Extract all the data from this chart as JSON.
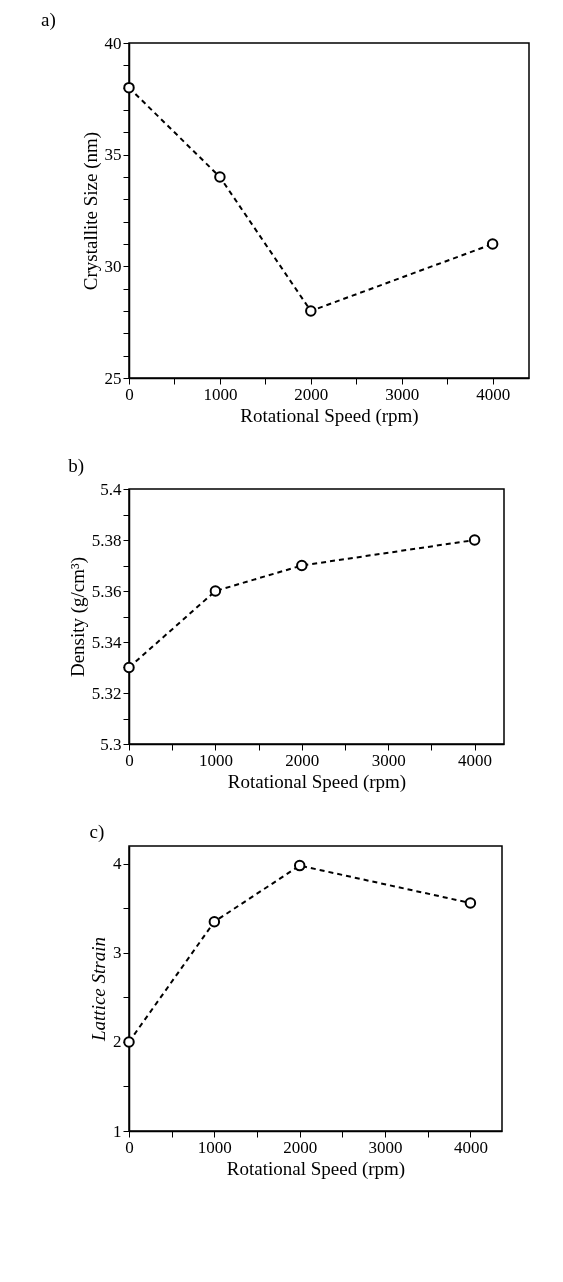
{
  "chart_data": [
    {
      "type": "line",
      "title": "a)",
      "xlabel": "Rotational Speed (rpm)",
      "ylabel": "Crystallite Size (nm)",
      "x": [
        0,
        1000,
        2000,
        4000
      ],
      "series": [
        {
          "color": "#000000",
          "values": [
            38,
            34,
            28,
            31
          ]
        }
      ],
      "xlim": [
        0,
        4400
      ],
      "xticks": [
        0,
        {
          "value": 500,
          "label": null
        },
        1000,
        {
          "value": 1500,
          "label": null
        },
        2000,
        {
          "value": 2500,
          "label": null
        },
        3000,
        {
          "value": 3500,
          "label": null
        },
        4000
      ],
      "ylim": [
        25,
        40
      ],
      "yticks": [
        25,
        {
          "value": 26,
          "label": null
        },
        {
          "value": 27,
          "label": null
        },
        {
          "value": 28,
          "label": null
        },
        {
          "value": 29,
          "label": null
        },
        30,
        {
          "value": 31,
          "label": null
        },
        {
          "value": 32,
          "label": null
        },
        {
          "value": 33,
          "label": null
        },
        {
          "value": 34,
          "label": null
        },
        35,
        {
          "value": 36,
          "label": null
        },
        {
          "value": 37,
          "label": null
        },
        {
          "value": 38,
          "label": null
        },
        {
          "value": 39,
          "label": null
        },
        40
      ],
      "grid": false,
      "marker": "circle",
      "line_style": "dashed"
    },
    {
      "type": "line",
      "title": "b)",
      "xlabel": "Rotational Speed (rpm)",
      "ylabel": "Density (g/cm³)",
      "x": [
        0,
        1000,
        2000,
        4000
      ],
      "series": [
        {
          "color": "#000000",
          "values": [
            5.33,
            5.36,
            5.37,
            5.38
          ]
        }
      ],
      "xlim": [
        0,
        4340
      ],
      "xticks": [
        0,
        {
          "value": 500,
          "label": null
        },
        1000,
        {
          "value": 1500,
          "label": null
        },
        2000,
        {
          "value": 2500,
          "label": null
        },
        3000,
        {
          "value": 3500,
          "label": null
        },
        4000
      ],
      "ylim": [
        5.3,
        5.4
      ],
      "yticks": [
        5.3,
        {
          "value": 5.31,
          "label": null
        },
        5.32,
        {
          "value": 5.33,
          "label": null
        },
        5.34,
        {
          "value": 5.35,
          "label": null
        },
        5.36,
        {
          "value": 5.37,
          "label": null
        },
        5.38,
        {
          "value": 5.39,
          "label": null
        },
        5.4
      ],
      "grid": false,
      "marker": "circle",
      "line_style": "dashed"
    },
    {
      "type": "line",
      "title": "c)",
      "xlabel": "Rotational Speed (rpm)",
      "ylabel": "Lattice Strain",
      "x": [
        0,
        1000,
        2000,
        4000
      ],
      "series": [
        {
          "color": "#000000",
          "values": [
            2.0,
            3.35,
            3.98,
            3.56
          ]
        }
      ],
      "xlim": [
        0,
        4370
      ],
      "xticks": [
        0,
        {
          "value": 500,
          "label": null
        },
        1000,
        {
          "value": 1500,
          "label": null
        },
        2000,
        {
          "value": 2500,
          "label": null
        },
        3000,
        {
          "value": 3500,
          "label": null
        },
        4000
      ],
      "ylim": [
        1,
        4.2
      ],
      "yticks": [
        1,
        {
          "value": 1.5,
          "label": null
        },
        2,
        {
          "value": 2.5,
          "label": null
        },
        3,
        {
          "value": 3.5,
          "label": null
        },
        4
      ],
      "grid": false,
      "marker": "circle",
      "line_style": "dashed"
    }
  ]
}
